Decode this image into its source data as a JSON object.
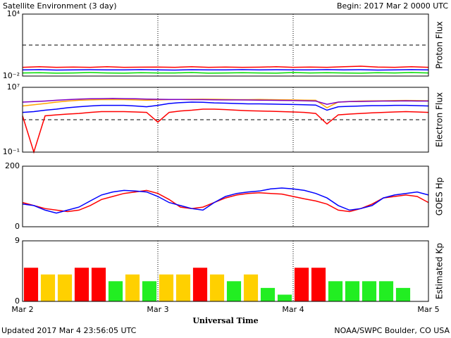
{
  "header": {
    "title": "Satellite Environment (3 day)",
    "begin": "Begin:  2017 Mar 2 0000 UTC"
  },
  "footer": {
    "updated": "Updated 2017 Mar  4 23:56:05 UTC",
    "source": "NOAA/SWPC Boulder, CO USA"
  },
  "x_axis": {
    "labels": [
      "Mar 2",
      "Mar 3",
      "Mar 4",
      "Mar 5"
    ],
    "title": "Universal Time"
  },
  "chart_data": [
    {
      "type": "line",
      "ylabel": "Proton Flux",
      "log": true,
      "ylim": [
        0.01,
        10000
      ],
      "yticks": [
        {
          "value": 10000,
          "label": "10⁴"
        },
        {
          "value": 0.01,
          "label": "10⁻²"
        }
      ],
      "threshold": 10,
      "series": [
        {
          "name": null,
          "color": "#ff0000",
          "values": [
            0.07,
            0.08,
            0.07,
            0.075,
            0.07,
            0.08,
            0.07,
            0.072,
            0.075,
            0.07,
            0.08,
            0.07,
            0.075,
            0.07,
            0.072,
            0.08,
            0.07,
            0.075,
            0.07,
            0.08,
            0.09,
            0.075,
            0.07,
            0.08,
            0.07
          ]
        },
        {
          "name": null,
          "color": "#0000ff",
          "values": [
            0.04,
            0.042,
            0.038,
            0.04,
            0.041,
            0.039,
            0.04,
            0.042,
            0.04,
            0.038,
            0.041,
            0.04,
            0.039,
            0.042,
            0.04,
            0.041,
            0.04,
            0.039,
            0.042,
            0.04,
            0.041,
            0.038,
            0.04,
            0.042,
            0.04
          ]
        },
        {
          "name": null,
          "color": "#00dd00",
          "values": [
            0.02,
            0.021,
            0.019,
            0.02,
            0.022,
            0.02,
            0.019,
            0.021,
            0.02,
            0.02,
            0.022,
            0.019,
            0.02,
            0.021,
            0.02,
            0.019,
            0.022,
            0.02,
            0.021,
            0.02,
            0.019,
            0.021,
            0.02,
            0.022,
            0.02
          ]
        }
      ]
    },
    {
      "type": "line",
      "ylabel": "Electron Flux",
      "log": true,
      "ylim": [
        0.1,
        10000000
      ],
      "yticks": [
        {
          "value": 10000000,
          "label": "10⁷"
        },
        {
          "value": 0.1,
          "label": "10⁻¹"
        }
      ],
      "threshold": 1000,
      "series": [
        {
          "name": null,
          "color": "#ffa500",
          "values": [
            50000,
            70000,
            100000,
            150000,
            200000,
            250000,
            280000,
            300000,
            300000,
            300000,
            280000,
            250000,
            280000,
            300000,
            320000,
            330000,
            340000,
            330000,
            320000,
            300000,
            300000,
            310000,
            300000,
            290000,
            280000,
            260000,
            250000,
            30000,
            150000,
            180000,
            200000,
            210000,
            220000,
            230000,
            240000,
            230000,
            220000
          ]
        },
        {
          "name": null,
          "color": "#8000c0",
          "values": [
            150000,
            170000,
            200000,
            250000,
            300000,
            350000,
            380000,
            400000,
            420000,
            400000,
            380000,
            350000,
            330000,
            320000,
            310000,
            300000,
            300000,
            290000,
            280000,
            280000,
            270000,
            260000,
            250000,
            240000,
            230000,
            220000,
            200000,
            80000,
            150000,
            170000,
            180000,
            190000,
            200000,
            200000,
            210000,
            200000,
            200000
          ]
        },
        {
          "name": null,
          "color": "#0000ff",
          "values": [
            8000,
            10000,
            15000,
            20000,
            30000,
            40000,
            50000,
            60000,
            60000,
            60000,
            50000,
            40000,
            60000,
            100000,
            130000,
            150000,
            140000,
            120000,
            110000,
            100000,
            90000,
            90000,
            85000,
            80000,
            75000,
            70000,
            65000,
            15000,
            40000,
            45000,
            50000,
            55000,
            55000,
            60000,
            60000,
            55000,
            50000
          ]
        },
        {
          "name": null,
          "color": "#ff0000",
          "values": [
            3000,
            0.1,
            3000,
            4000,
            5000,
            6000,
            8000,
            10000,
            10000,
            10000,
            9000,
            8000,
            500,
            8000,
            12000,
            15000,
            20000,
            20000,
            18000,
            15000,
            13000,
            12000,
            11000,
            10000,
            9000,
            8000,
            6000,
            300,
            4000,
            5000,
            6000,
            7000,
            8000,
            9000,
            10000,
            9000,
            8000
          ]
        }
      ]
    },
    {
      "type": "line",
      "ylabel": "GOES Hp",
      "ylim": [
        0,
        200
      ],
      "yticks": [
        200,
        0
      ],
      "series": [
        {
          "name": null,
          "color": "#ff0000",
          "values": [
            80,
            70,
            60,
            55,
            50,
            55,
            70,
            90,
            100,
            110,
            115,
            120,
            110,
            90,
            65,
            60,
            65,
            80,
            95,
            105,
            110,
            112,
            110,
            108,
            100,
            92,
            85,
            75,
            55,
            50,
            60,
            75,
            95,
            100,
            105,
            100,
            80
          ]
        },
        {
          "name": null,
          "color": "#0000ff",
          "values": [
            75,
            70,
            55,
            45,
            55,
            65,
            85,
            105,
            115,
            120,
            118,
            115,
            100,
            80,
            70,
            60,
            55,
            80,
            100,
            110,
            115,
            118,
            125,
            128,
            125,
            120,
            110,
            95,
            70,
            55,
            60,
            70,
            95,
            105,
            110,
            115,
            105
          ]
        }
      ]
    },
    {
      "type": "bar",
      "ylabel": "Estimated Kp",
      "ylim": [
        0,
        9
      ],
      "yticks": [
        9,
        0
      ],
      "categories": [
        null,
        null,
        null,
        null,
        null,
        null,
        null,
        null,
        null,
        null,
        null,
        null,
        null,
        null,
        null,
        null,
        null,
        null,
        null,
        null,
        null,
        null,
        null,
        null
      ],
      "values": [
        5,
        4,
        4,
        5,
        5,
        3,
        4,
        3,
        4,
        4,
        5,
        4,
        3,
        4,
        2,
        1,
        5,
        5,
        3,
        3,
        3,
        3,
        2,
        null
      ],
      "colors": [
        "#ff0000",
        "#ffd000",
        "#ffd000",
        "#ff0000",
        "#ff0000",
        "#22ee22",
        "#ffd000",
        "#22ee22",
        "#ffd000",
        "#ffd000",
        "#ff0000",
        "#ffd000",
        "#22ee22",
        "#ffd000",
        "#22ee22",
        "#22ee22",
        "#ff0000",
        "#ff0000",
        "#22ee22",
        "#22ee22",
        "#22ee22",
        "#22ee22",
        "#22ee22",
        null
      ]
    }
  ]
}
